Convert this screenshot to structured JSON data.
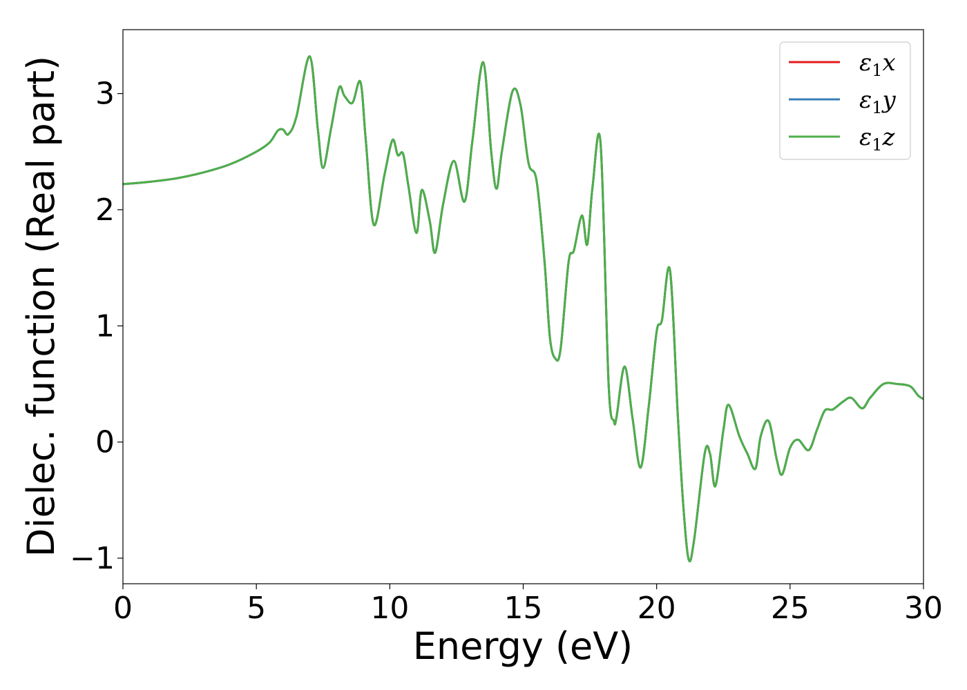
{
  "chart_data": {
    "type": "line",
    "title": "",
    "xlabel": "Energy (eV)",
    "ylabel": "Dielec. function (Real part)",
    "xlim": [
      0,
      30
    ],
    "ylim": [
      -1.22,
      3.55
    ],
    "xticks": [
      0,
      5,
      10,
      15,
      20,
      25,
      30
    ],
    "xtick_labels": [
      "0",
      "5",
      "10",
      "15",
      "20",
      "25",
      "30"
    ],
    "yticks": [
      -1,
      0,
      1,
      2,
      3
    ],
    "ytick_labels": [
      "−1",
      "0",
      "1",
      "2",
      "3"
    ],
    "grid": false,
    "legend_position": "top-right",
    "x": [
      0,
      1,
      2,
      3,
      4,
      5,
      5.5,
      5.8,
      6.0,
      6.2,
      6.5,
      7.0,
      7.3,
      7.5,
      7.8,
      8.1,
      8.3,
      8.6,
      8.9,
      9.1,
      9.4,
      9.8,
      10.1,
      10.3,
      10.5,
      10.7,
      11.0,
      11.2,
      11.5,
      11.7,
      12.0,
      12.4,
      12.8,
      13.1,
      13.5,
      13.8,
      14.0,
      14.2,
      14.6,
      14.9,
      15.2,
      15.5,
      15.8,
      16.0,
      16.2,
      16.4,
      16.7,
      16.9,
      17.2,
      17.4,
      17.6,
      17.9,
      18.2,
      18.4,
      18.5,
      18.8,
      19.1,
      19.4,
      19.7,
      20.0,
      20.2,
      20.5,
      20.8,
      21.0,
      21.2,
      21.4,
      21.8,
      22.0,
      22.2,
      22.5,
      22.7,
      23.1,
      23.4,
      23.7,
      23.9,
      24.2,
      24.5,
      24.7,
      25.0,
      25.3,
      25.7,
      26.0,
      26.3,
      26.6,
      27.0,
      27.3,
      27.7,
      28.0,
      28.5,
      29.0,
      29.5,
      29.8,
      30
    ],
    "series": [
      {
        "name": "x",
        "color": "#e41a1c",
        "values": [
          2.22,
          2.24,
          2.27,
          2.32,
          2.39,
          2.5,
          2.58,
          2.68,
          2.69,
          2.65,
          2.8,
          3.32,
          2.7,
          2.36,
          2.7,
          3.05,
          2.98,
          2.92,
          3.1,
          2.6,
          1.87,
          2.3,
          2.6,
          2.47,
          2.48,
          2.2,
          1.8,
          2.17,
          1.9,
          1.63,
          2.05,
          2.42,
          2.07,
          2.6,
          3.27,
          2.5,
          2.18,
          2.5,
          3.02,
          2.9,
          2.4,
          2.25,
          1.55,
          0.9,
          0.72,
          0.8,
          1.55,
          1.65,
          1.95,
          1.7,
          2.2,
          2.57,
          0.5,
          0.18,
          0.22,
          0.65,
          0.2,
          -0.22,
          0.3,
          0.95,
          1.05,
          1.48,
          0.2,
          -0.55,
          -1.01,
          -0.85,
          -0.1,
          -0.1,
          -0.38,
          0.1,
          0.32,
          0.05,
          -0.1,
          -0.23,
          0.05,
          0.18,
          -0.15,
          -0.28,
          -0.05,
          0.02,
          -0.07,
          0.1,
          0.27,
          0.28,
          0.35,
          0.38,
          0.29,
          0.38,
          0.5,
          0.5,
          0.48,
          0.4,
          0.37
        ]
      },
      {
        "name": "y",
        "color": "#377eb8",
        "values": [
          2.22,
          2.24,
          2.27,
          2.32,
          2.39,
          2.5,
          2.58,
          2.68,
          2.69,
          2.65,
          2.8,
          3.32,
          2.7,
          2.36,
          2.7,
          3.05,
          2.98,
          2.92,
          3.1,
          2.6,
          1.87,
          2.3,
          2.6,
          2.47,
          2.48,
          2.2,
          1.8,
          2.17,
          1.9,
          1.63,
          2.05,
          2.42,
          2.07,
          2.6,
          3.27,
          2.5,
          2.18,
          2.5,
          3.02,
          2.9,
          2.4,
          2.25,
          1.55,
          0.9,
          0.72,
          0.8,
          1.55,
          1.65,
          1.95,
          1.7,
          2.2,
          2.57,
          0.5,
          0.18,
          0.22,
          0.65,
          0.2,
          -0.22,
          0.3,
          0.95,
          1.05,
          1.48,
          0.2,
          -0.55,
          -1.01,
          -0.85,
          -0.1,
          -0.1,
          -0.38,
          0.1,
          0.32,
          0.05,
          -0.1,
          -0.23,
          0.05,
          0.18,
          -0.15,
          -0.28,
          -0.05,
          0.02,
          -0.07,
          0.1,
          0.27,
          0.28,
          0.35,
          0.38,
          0.29,
          0.38,
          0.5,
          0.5,
          0.48,
          0.4,
          0.37
        ]
      },
      {
        "name": "z",
        "color": "#4daf4a",
        "values": [
          2.22,
          2.24,
          2.27,
          2.32,
          2.39,
          2.5,
          2.58,
          2.68,
          2.69,
          2.65,
          2.8,
          3.32,
          2.7,
          2.36,
          2.7,
          3.05,
          2.98,
          2.92,
          3.1,
          2.6,
          1.87,
          2.3,
          2.6,
          2.47,
          2.48,
          2.2,
          1.8,
          2.17,
          1.9,
          1.63,
          2.05,
          2.42,
          2.07,
          2.6,
          3.27,
          2.5,
          2.18,
          2.5,
          3.02,
          2.9,
          2.4,
          2.25,
          1.55,
          0.9,
          0.72,
          0.8,
          1.55,
          1.65,
          1.95,
          1.7,
          2.2,
          2.57,
          0.5,
          0.18,
          0.22,
          0.65,
          0.2,
          -0.22,
          0.3,
          0.95,
          1.05,
          1.48,
          0.2,
          -0.55,
          -1.01,
          -0.85,
          -0.1,
          -0.1,
          -0.38,
          0.1,
          0.32,
          0.05,
          -0.1,
          -0.23,
          0.05,
          0.18,
          -0.15,
          -0.28,
          -0.05,
          0.02,
          -0.07,
          0.1,
          0.27,
          0.28,
          0.35,
          0.38,
          0.29,
          0.38,
          0.5,
          0.5,
          0.48,
          0.4,
          0.37
        ]
      }
    ],
    "legend": {
      "symbol": "ε",
      "subscript": "1",
      "entries": [
        "x",
        "y",
        "z"
      ]
    }
  }
}
